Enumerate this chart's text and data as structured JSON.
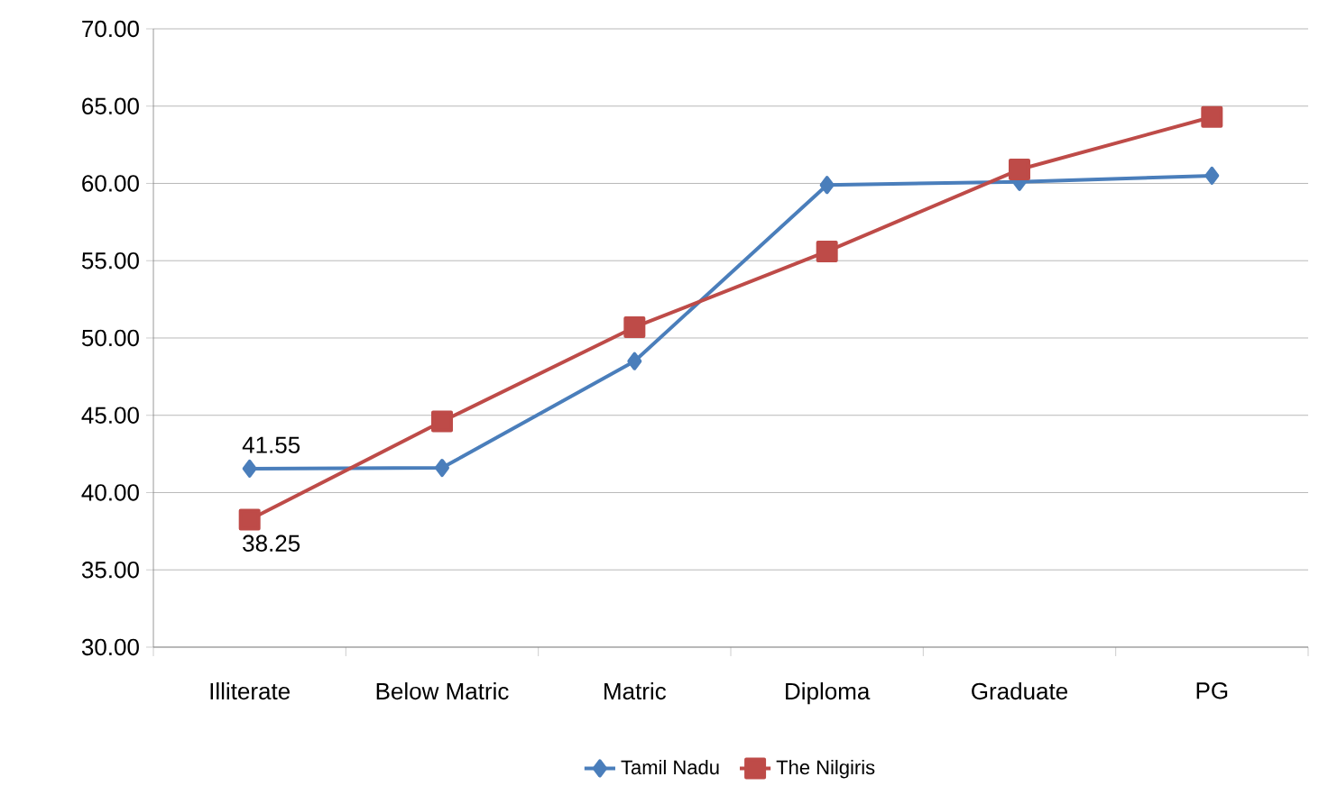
{
  "chart_data": {
    "type": "line",
    "categories": [
      "Illiterate",
      "Below Matric",
      "Matric",
      "Diploma",
      "Graduate",
      "PG"
    ],
    "series": [
      {
        "name": "Tamil Nadu",
        "color": "#4a7ebb",
        "marker": "diamond",
        "values": [
          41.55,
          41.6,
          48.5,
          59.9,
          60.1,
          60.5
        ],
        "value_labels": [
          "41.55",
          null,
          null,
          null,
          null,
          null
        ]
      },
      {
        "name": "The Nilgiris",
        "color": "#be4b48",
        "marker": "square",
        "values": [
          38.25,
          44.6,
          50.7,
          55.6,
          60.9,
          64.3
        ],
        "value_labels": [
          "38.25",
          null,
          null,
          null,
          null,
          null
        ]
      }
    ],
    "ylim": [
      30,
      70
    ],
    "yticks": [
      {
        "value": 30,
        "label": "30.00"
      },
      {
        "value": 35,
        "label": "35.00"
      },
      {
        "value": 40,
        "label": "40.00"
      },
      {
        "value": 45,
        "label": "45.00"
      },
      {
        "value": 50,
        "label": "50.00"
      },
      {
        "value": 55,
        "label": "55.00"
      },
      {
        "value": 60,
        "label": "60.00"
      },
      {
        "value": 65,
        "label": "65.00"
      },
      {
        "value": 70,
        "label": "70.00"
      }
    ],
    "grid": "y",
    "legend": "bottom",
    "line_style": "solid"
  }
}
